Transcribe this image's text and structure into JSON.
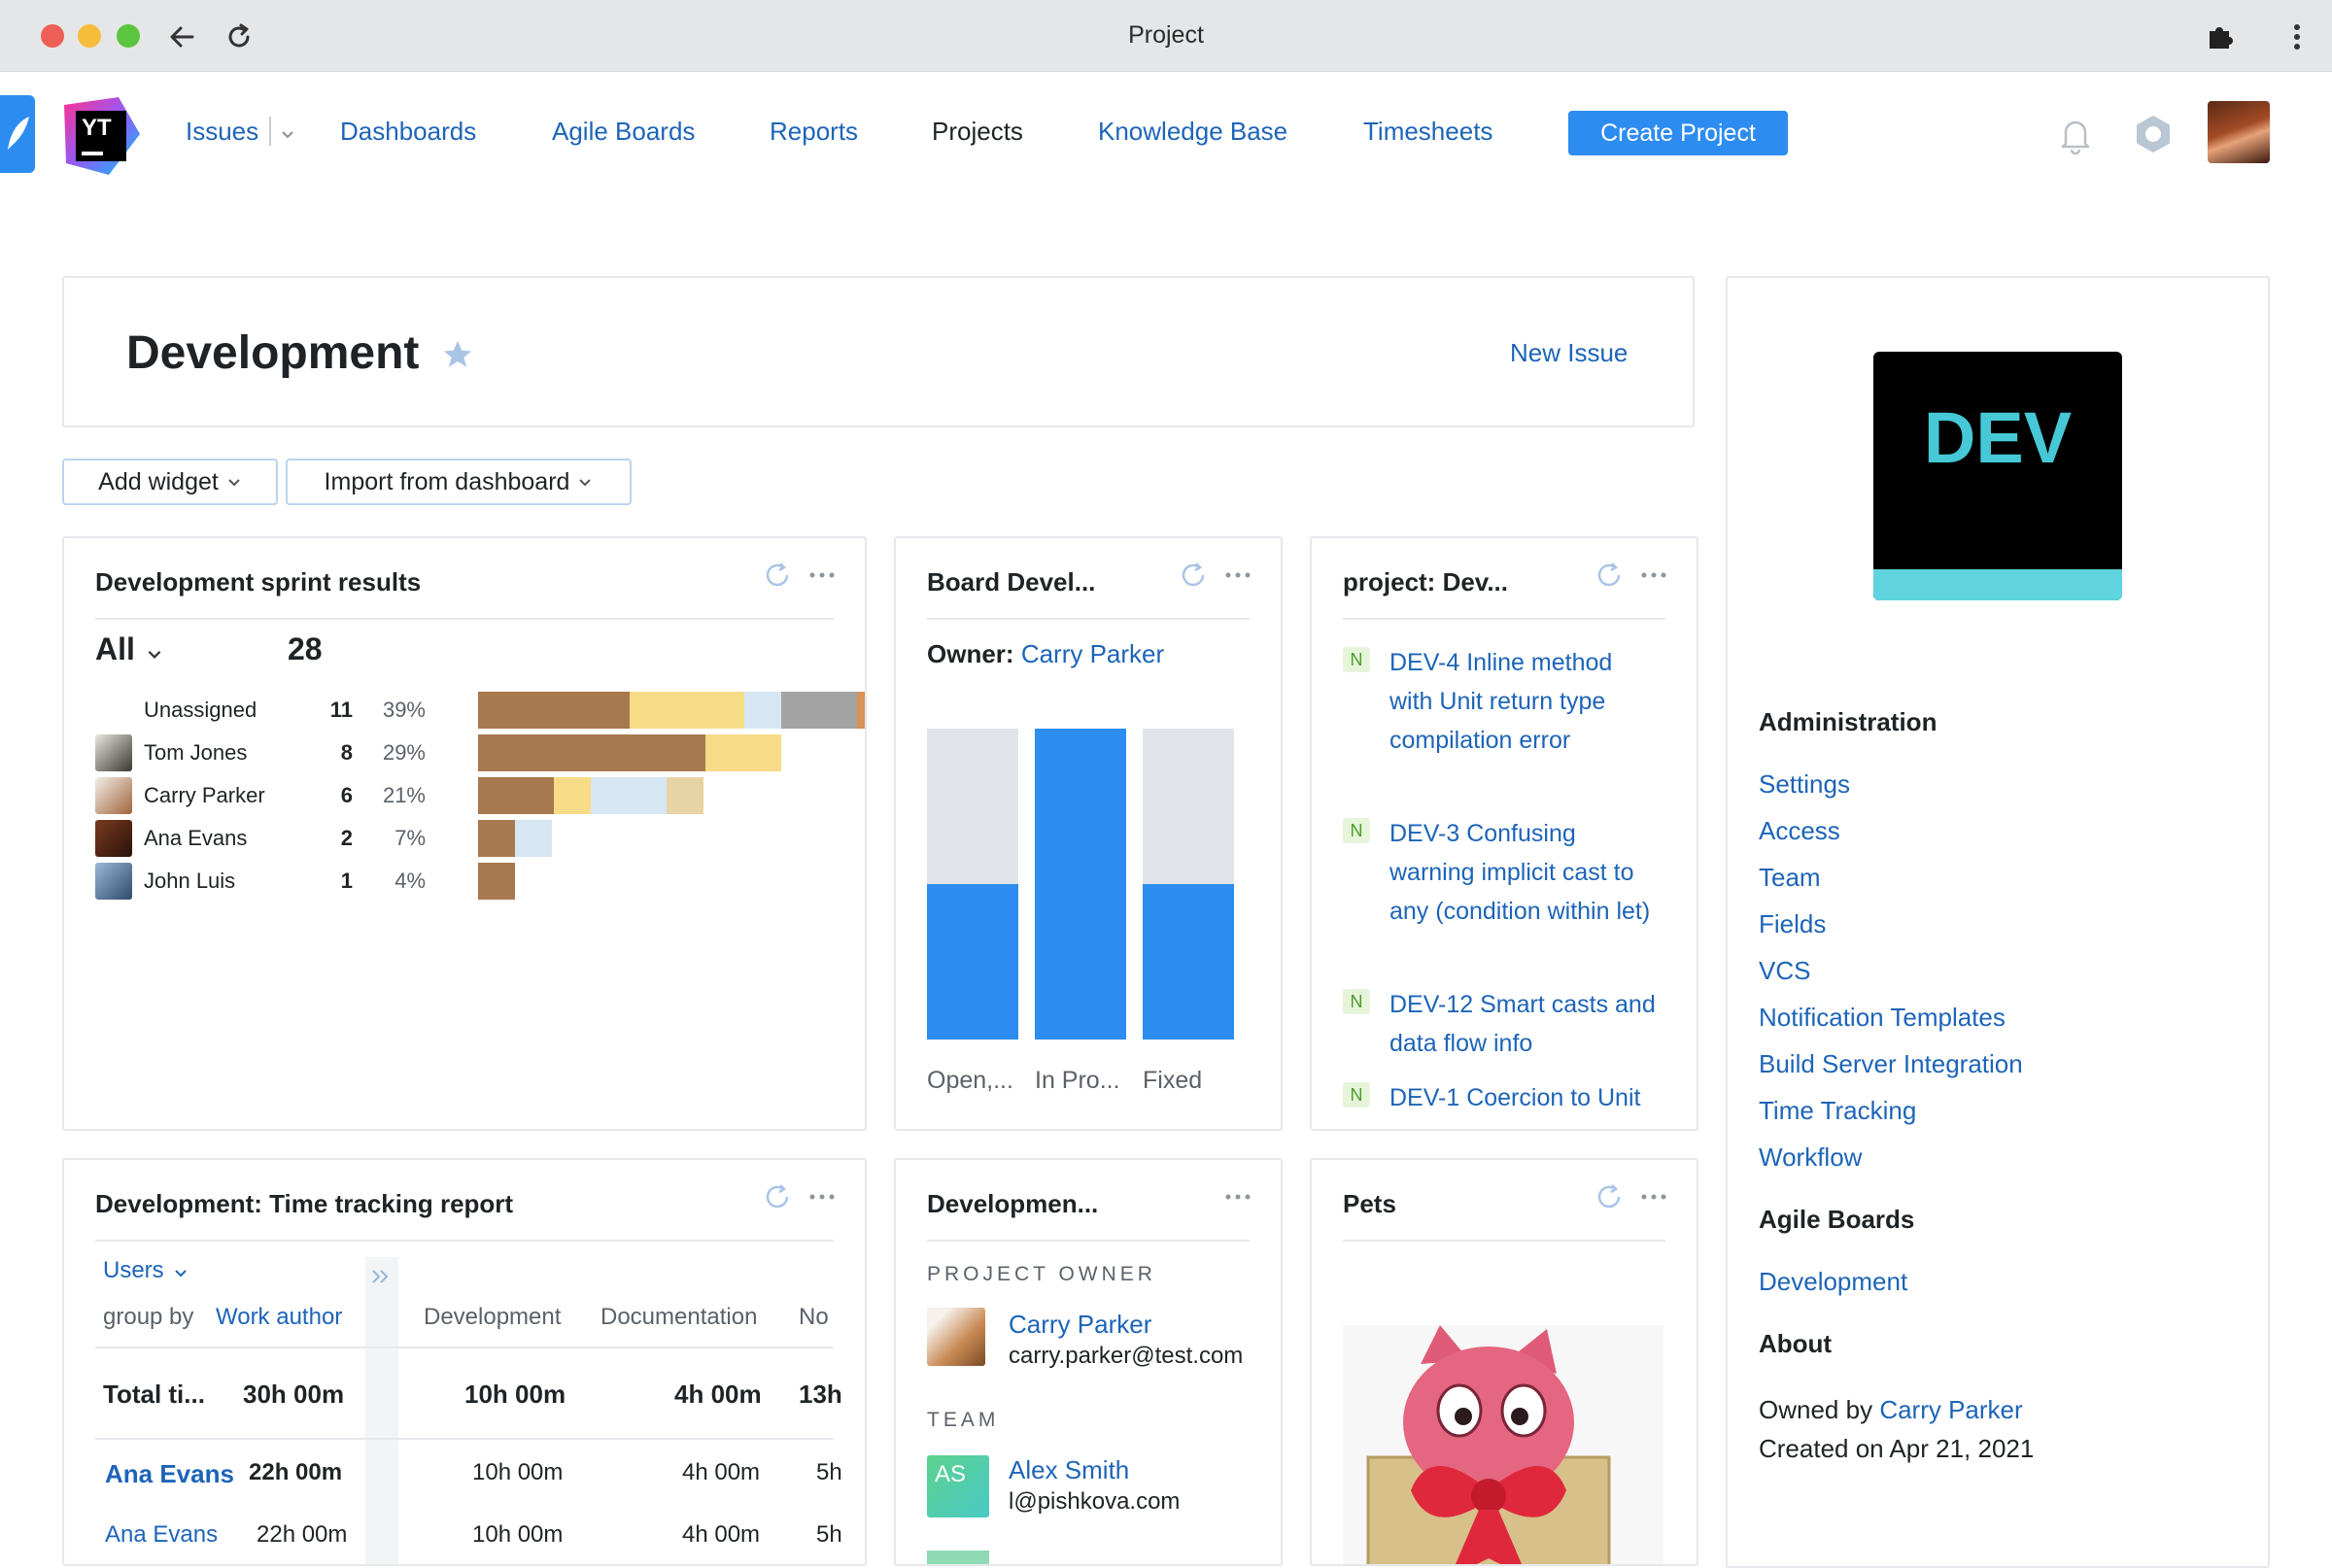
{
  "window": {
    "title": "Project"
  },
  "nav": {
    "issues": "Issues",
    "dashboards": "Dashboards",
    "agile_boards": "Agile Boards",
    "reports": "Reports",
    "projects": "Projects",
    "knowledge_base": "Knowledge Base",
    "timesheets": "Timesheets",
    "create_project": "Create Project",
    "logo_text": "YT"
  },
  "header": {
    "title": "Development",
    "new_issue": "New Issue"
  },
  "toolbar": {
    "add_widget": "Add widget",
    "import_dashboard": "Import from dashboard"
  },
  "sprint": {
    "title": "Development sprint results",
    "filter": "All",
    "total": "28",
    "rows": [
      {
        "name": "Unassigned",
        "count": "11",
        "pct": "39%"
      },
      {
        "name": "Tom Jones",
        "count": "8",
        "pct": "29%"
      },
      {
        "name": "Carry Parker",
        "count": "6",
        "pct": "21%"
      },
      {
        "name": "Ana Evans",
        "count": "2",
        "pct": "7%"
      },
      {
        "name": "John Luis",
        "count": "1",
        "pct": "4%"
      }
    ]
  },
  "board": {
    "title": "Board Devel...",
    "owner_label": "Owner:",
    "owner": "Carry Parker",
    "columns": [
      {
        "label": "Open,...",
        "done_fraction": 0.5
      },
      {
        "label": "In Pro...",
        "done_fraction": 1.0
      },
      {
        "label": "Fixed",
        "done_fraction": 0.5
      }
    ],
    "colors": {
      "done": "#2d8cf0",
      "rest": "#e1e4e8"
    }
  },
  "issues_widget": {
    "title": "project: Dev...",
    "items": [
      {
        "badge": "N",
        "text": "DEV-4  Inline method with Unit return type compilation error"
      },
      {
        "badge": "N",
        "text": "DEV-3  Confusing warning implicit cast to any (condition within let)"
      },
      {
        "badge": "N",
        "text": "DEV-12  Smart casts and data flow info"
      },
      {
        "badge": "N",
        "text": "DEV-1  Coercion to Unit"
      }
    ]
  },
  "timetracking": {
    "title": "Development: Time tracking report",
    "users_label": "Users",
    "group_by": "group by",
    "work_author": "Work author",
    "cols": [
      "Development",
      "Documentation",
      "No"
    ],
    "total": {
      "label": "Total ti...",
      "sum": "30h 00m",
      "dev": "10h 00m",
      "doc": "4h 00m",
      "no": "13h"
    },
    "rows": [
      {
        "name": "Ana Evans",
        "sum": "22h 00m",
        "dev": "10h 00m",
        "doc": "4h 00m",
        "no": "5h"
      },
      {
        "name": "Ana Evans",
        "sum": "22h 00m",
        "dev": "10h 00m",
        "doc": "4h 00m",
        "no": "5h"
      }
    ]
  },
  "team_widget": {
    "title": "Developmen...",
    "owner_heading": "PROJECT OWNER",
    "owner_name": "Carry Parker",
    "owner_email": "carry.parker@test.com",
    "team_heading": "TEAM",
    "member_initials": "AS",
    "member_name": "Alex Smith",
    "member_email": "l@pishkova.com"
  },
  "pets": {
    "title": "Pets"
  },
  "sidebar": {
    "logo_text": "DEV",
    "administration": "Administration",
    "admin_links": [
      "Settings",
      "Access",
      "Team",
      "Fields",
      "VCS",
      "Notification Templates",
      "Build Server Integration",
      "Time Tracking",
      "Workflow"
    ],
    "agile_boards": "Agile Boards",
    "board_link": "Development",
    "about": "About",
    "owned_by": "Owned by",
    "owner": "Carry Parker",
    "created": "Created on Apr 21, 2021"
  }
}
